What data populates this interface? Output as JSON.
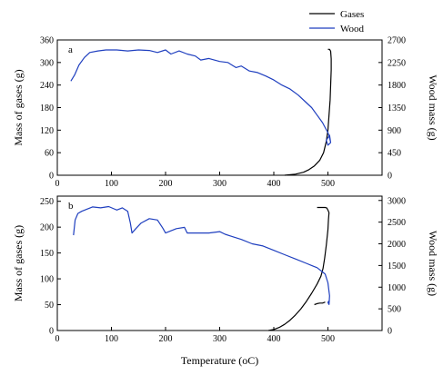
{
  "chart_data": {
    "type": "line",
    "legend": {
      "placement": "top-right",
      "entries": [
        {
          "label": "Gases",
          "color": "#000000"
        },
        {
          "label": "Wood",
          "color": "#1f3fbf"
        }
      ]
    },
    "xlabel": "Temperature (oC)",
    "xlim": [
      0,
      600
    ],
    "xticks": [
      "0",
      "100",
      "200",
      "300",
      "400",
      "500"
    ],
    "panels": [
      {
        "label": "a",
        "ylabel_left": "Mass of gases (g)",
        "ylabel_right": "Wood mass (g)",
        "ylim_left": [
          0,
          360
        ],
        "ylim_right": [
          0,
          2700
        ],
        "yticks_left": [
          "0",
          "60",
          "120",
          "180",
          "240",
          "300",
          "360"
        ],
        "yticks_right": [
          "0",
          "450",
          "900",
          "1350",
          "1800",
          "2250",
          "2700"
        ],
        "series": [
          {
            "name": "Gases",
            "axis": "left",
            "color": "#000000",
            "x": [
              420,
              440,
              455,
              465,
              475,
              485,
              492,
              497,
              500,
              502,
              504,
              505,
              506,
              506,
              505,
              503,
              500
            ],
            "y": [
              0,
              3,
              8,
              15,
              25,
              40,
              60,
              90,
              120,
              160,
              200,
              240,
              280,
              310,
              330,
              335,
              335
            ]
          },
          {
            "name": "Wood",
            "axis": "right",
            "color": "#1f3fbf",
            "x": [
              25,
              32,
              40,
              50,
              60,
              75,
              90,
              110,
              130,
              150,
              170,
              185,
              200,
              210,
              225,
              240,
              255,
              265,
              280,
              300,
              315,
              330,
              340,
              355,
              370,
              385,
              400,
              415,
              430,
              445,
              460,
              470,
              480,
              490,
              495,
              500,
              503,
              505,
              500,
              497,
              503,
              505
            ],
            "y": [
              1880,
              2000,
              2200,
              2350,
              2450,
              2480,
              2500,
              2500,
              2480,
              2500,
              2490,
              2450,
              2500,
              2420,
              2480,
              2420,
              2380,
              2300,
              2330,
              2270,
              2250,
              2150,
              2180,
              2080,
              2050,
              1980,
              1900,
              1800,
              1720,
              1600,
              1450,
              1350,
              1200,
              1050,
              950,
              850,
              750,
              650,
              600,
              700,
              800,
              650
            ]
          }
        ]
      },
      {
        "label": "b",
        "ylabel_left": "Mass of gases (g)",
        "ylabel_right": "Wood mass (g)",
        "ylim_left": [
          0,
          260
        ],
        "ylim_right": [
          0,
          3100
        ],
        "yticks_left": [
          "0",
          "50",
          "100",
          "150",
          "200",
          "250"
        ],
        "yticks_right": [
          "0",
          "500",
          "1000",
          "1500",
          "2000",
          "2500",
          "3000"
        ],
        "series": [
          {
            "name": "Gases",
            "axis": "left",
            "color": "#000000",
            "x": [
              390,
              400,
              410,
              420,
              430,
              440,
              450,
              460,
              470,
              480,
              487,
              491,
              494,
              497,
              500,
              501,
              502,
              500,
              498,
              495,
              490,
              485,
              480
            ],
            "y": [
              0,
              2,
              6,
              12,
              20,
              30,
              42,
              56,
              72,
              90,
              105,
              120,
              140,
              165,
              195,
              215,
              228,
              233,
              237,
              238,
              238,
              238,
              238
            ]
          },
          {
            "name": "Wood",
            "axis": "right",
            "color": "#1f3fbf",
            "x": [
              30,
              33,
              38,
              45,
              55,
              65,
              80,
              95,
              110,
              120,
              130,
              135,
              138,
              145,
              155,
              170,
              185,
              195,
              200,
              210,
              220,
              235,
              240,
              260,
              280,
              300,
              310,
              320,
              340,
              360,
              380,
              400,
              420,
              440,
              460,
              470,
              480,
              485,
              490,
              495,
              500,
              503,
              502,
              500,
              503
            ],
            "y": [
              2200,
              2550,
              2700,
              2750,
              2800,
              2850,
              2830,
              2860,
              2780,
              2830,
              2750,
              2480,
              2250,
              2350,
              2480,
              2580,
              2550,
              2360,
              2250,
              2300,
              2350,
              2380,
              2250,
              2250,
              2250,
              2280,
              2220,
              2180,
              2100,
              2000,
              1950,
              1850,
              1750,
              1650,
              1550,
              1500,
              1450,
              1400,
              1350,
              1300,
              1100,
              800,
              600,
              650,
              700
            ]
          },
          {
            "name": "",
            "axis": "left",
            "color": "#000000",
            "x": [
              475,
              480,
              485,
              490,
              495
            ],
            "y": [
              50,
              52,
              53,
              53,
              55
            ]
          }
        ]
      }
    ]
  }
}
